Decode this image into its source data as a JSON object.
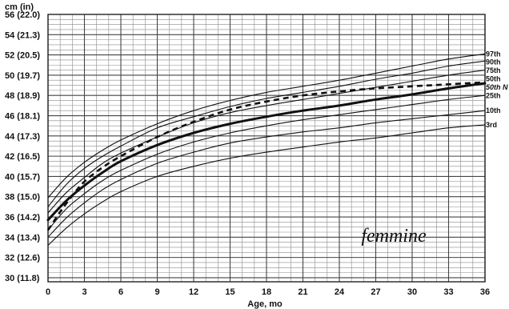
{
  "chart_data": {
    "type": "line",
    "ylabel": "cm (in)",
    "xlabel": "Age, mo",
    "annotation": "femmine",
    "xlim": [
      0,
      36
    ],
    "ylim": [
      29.6,
      56
    ],
    "x_ticks": [
      0,
      3,
      6,
      9,
      12,
      15,
      18,
      21,
      24,
      27,
      30,
      33,
      36
    ],
    "x_tick_labels": [
      "0",
      "3",
      "6",
      "9",
      "12",
      "15",
      "18",
      "21",
      "24",
      "27",
      "30",
      "33",
      "36"
    ],
    "y_ticks": [
      30,
      32,
      34,
      36,
      38,
      40,
      42,
      44,
      46,
      48,
      50,
      52,
      54,
      56
    ],
    "y_tick_labels": [
      "30 (11.8)",
      "32 (12.6)",
      "34 (13.4)",
      "36 (14.2)",
      "38 (15.0)",
      "40 (15.7)",
      "42 (16.5)",
      "44 (17.3)",
      "46 (18.1)",
      "48 (18.9)",
      "50 (19.7)",
      "52 (20.5)",
      "54 (21.3)",
      "56 (22.0)"
    ],
    "grid": true,
    "series": [
      {
        "name": "97th",
        "style": "thin",
        "x": [
          0,
          1.5,
          3,
          4.5,
          6,
          9,
          12,
          15,
          18,
          21,
          24,
          27,
          30,
          33,
          36
        ],
        "values": [
          37.9,
          39.9,
          41.4,
          42.6,
          43.6,
          45.2,
          46.5,
          47.5,
          48.3,
          48.9,
          49.5,
          50.2,
          50.9,
          51.6,
          52.1
        ]
      },
      {
        "name": "90th",
        "style": "thin",
        "x": [
          0,
          1.5,
          3,
          4.5,
          6,
          9,
          12,
          15,
          18,
          21,
          24,
          27,
          30,
          33,
          36
        ],
        "values": [
          37.0,
          39.2,
          40.8,
          42.0,
          43.0,
          44.8,
          45.9,
          46.9,
          47.7,
          48.3,
          48.9,
          49.6,
          50.2,
          50.9,
          51.4
        ]
      },
      {
        "name": "75th",
        "style": "thin",
        "x": [
          0,
          1.5,
          3,
          4.5,
          6,
          9,
          12,
          15,
          18,
          21,
          24,
          27,
          30,
          33,
          36
        ],
        "values": [
          36.4,
          38.4,
          39.9,
          41.3,
          42.3,
          43.9,
          45.3,
          46.3,
          47.0,
          47.6,
          48.2,
          48.8,
          49.4,
          50.0,
          50.5
        ]
      },
      {
        "name": "50th",
        "style": "bold",
        "x": [
          0,
          1.5,
          3,
          4.5,
          6,
          9,
          12,
          15,
          18,
          21,
          24,
          27,
          30,
          33,
          36
        ],
        "values": [
          35.7,
          37.6,
          39.1,
          40.4,
          41.5,
          43.1,
          44.3,
          45.2,
          45.9,
          46.5,
          47.0,
          47.6,
          48.1,
          48.7,
          49.2
        ]
      },
      {
        "name": "25th",
        "style": "thin",
        "x": [
          0,
          1.5,
          3,
          4.5,
          6,
          9,
          12,
          15,
          18,
          21,
          24,
          27,
          30,
          33,
          36
        ],
        "values": [
          34.7,
          36.8,
          38.3,
          39.6,
          40.6,
          42.2,
          43.4,
          44.3,
          45.0,
          45.6,
          46.1,
          46.6,
          47.1,
          47.6,
          48.0
        ]
      },
      {
        "name": "10th",
        "style": "thin",
        "x": [
          0,
          1.5,
          3,
          4.5,
          6,
          9,
          12,
          15,
          18,
          21,
          24,
          27,
          30,
          33,
          36
        ],
        "values": [
          34.0,
          35.9,
          37.4,
          38.7,
          39.7,
          41.3,
          42.4,
          43.3,
          43.9,
          44.4,
          44.8,
          45.3,
          45.7,
          46.1,
          46.5
        ]
      },
      {
        "name": "3rd",
        "style": "thin",
        "x": [
          0,
          1.5,
          3,
          4.5,
          6,
          9,
          12,
          15,
          18,
          21,
          24,
          27,
          30,
          33,
          36
        ],
        "values": [
          33.2,
          34.9,
          36.3,
          37.5,
          38.5,
          40.0,
          41.0,
          41.8,
          42.4,
          42.9,
          43.4,
          43.8,
          44.3,
          44.8,
          45.1
        ]
      },
      {
        "name": "50th N",
        "style": "dashed",
        "x": [
          0,
          1,
          2,
          3,
          4.5,
          6,
          9,
          12,
          15,
          18,
          21,
          24,
          27,
          30,
          33,
          36
        ],
        "values": [
          34.7,
          36.5,
          38.1,
          39.5,
          40.9,
          42.0,
          43.9,
          45.4,
          46.6,
          47.4,
          48.0,
          48.4,
          48.7,
          48.9,
          49.1,
          49.3
        ]
      }
    ],
    "series_labels": [
      "97th",
      "90th",
      "75th",
      "50th",
      "50th N",
      "25th",
      "10th",
      "3rd"
    ]
  }
}
